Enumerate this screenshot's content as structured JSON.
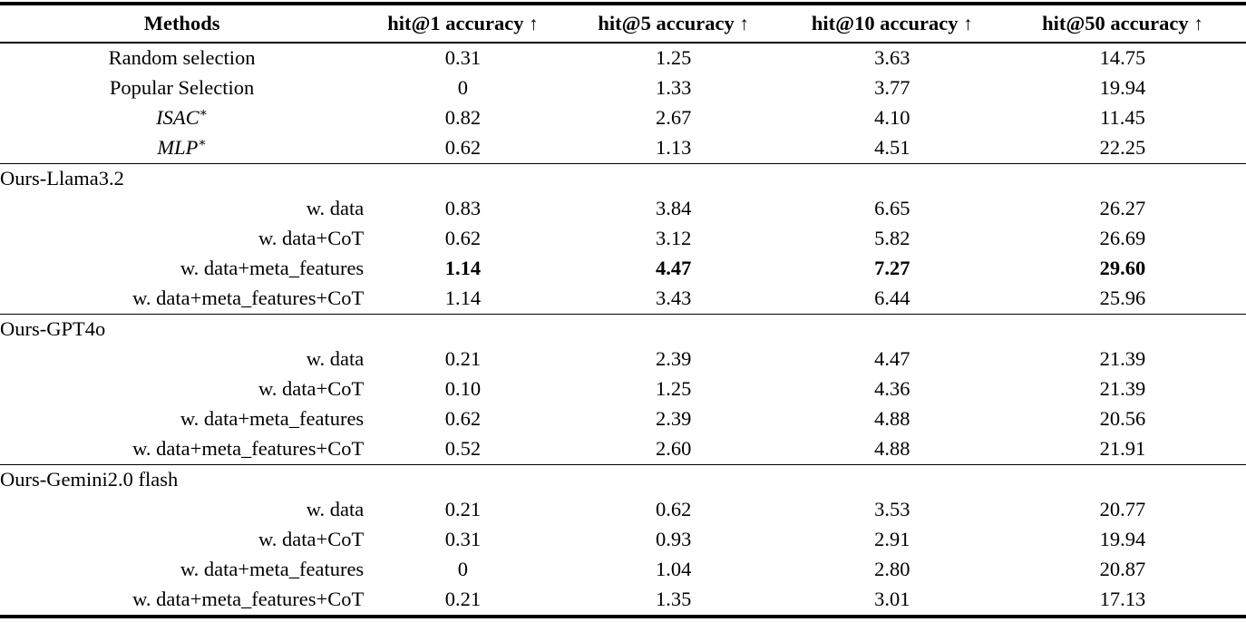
{
  "table": {
    "header": {
      "methods_label": "Methods",
      "metric_columns": [
        {
          "label": "hit@1 accuracy",
          "arrow": "↑"
        },
        {
          "label": "hit@5 accuracy",
          "arrow": "↑"
        },
        {
          "label": "hit@10 accuracy",
          "arrow": "↑"
        },
        {
          "label": "hit@50 accuracy",
          "arrow": "↑"
        }
      ]
    },
    "baseline_rows": [
      {
        "method": "Random selection",
        "values": [
          "0.31",
          "1.25",
          "3.63",
          "14.75"
        ]
      },
      {
        "method": "Popular Selection",
        "values": [
          "0",
          "1.33",
          "3.77",
          "19.94"
        ]
      },
      {
        "method": "ISAC",
        "superscript": "∗",
        "italic": true,
        "values": [
          "0.82",
          "2.67",
          "4.10",
          "11.45"
        ]
      },
      {
        "method": "MLP",
        "superscript": "∗",
        "italic": true,
        "values": [
          "0.62",
          "1.13",
          "4.51",
          "22.25"
        ]
      }
    ],
    "groups": [
      {
        "name": "Ours-Llama3.2",
        "rows": [
          {
            "method": "w. data",
            "values": [
              "0.83",
              "3.84",
              "6.65",
              "26.27"
            ]
          },
          {
            "method": "w. data+CoT",
            "values": [
              "0.62",
              "3.12",
              "5.82",
              "26.69"
            ]
          },
          {
            "method": "w. data+meta_features",
            "values": [
              "1.14",
              "4.47",
              "7.27",
              "29.60"
            ],
            "bold": true
          },
          {
            "method": "w. data+meta_features+CoT",
            "values": [
              "1.14",
              "3.43",
              "6.44",
              "25.96"
            ]
          }
        ]
      },
      {
        "name": "Ours-GPT4o",
        "rows": [
          {
            "method": "w. data",
            "values": [
              "0.21",
              "2.39",
              "4.47",
              "21.39"
            ]
          },
          {
            "method": "w. data+CoT",
            "values": [
              "0.10",
              "1.25",
              "4.36",
              "21.39"
            ]
          },
          {
            "method": "w. data+meta_features",
            "values": [
              "0.62",
              "2.39",
              "4.88",
              "20.56"
            ]
          },
          {
            "method": "w. data+meta_features+CoT",
            "values": [
              "0.52",
              "2.60",
              "4.88",
              "21.91"
            ]
          }
        ]
      },
      {
        "name": "Ours-Gemini2.0 flash",
        "rows": [
          {
            "method": "w. data",
            "values": [
              "0.21",
              "0.62",
              "3.53",
              "20.77"
            ]
          },
          {
            "method": "w. data+CoT",
            "values": [
              "0.31",
              "0.93",
              "2.91",
              "19.94"
            ]
          },
          {
            "method": "w. data+meta_features",
            "values": [
              "0",
              "1.04",
              "2.80",
              "20.87"
            ]
          },
          {
            "method": "w. data+meta_features+CoT",
            "values": [
              "0.21",
              "1.35",
              "3.01",
              "17.13"
            ]
          }
        ]
      }
    ]
  }
}
